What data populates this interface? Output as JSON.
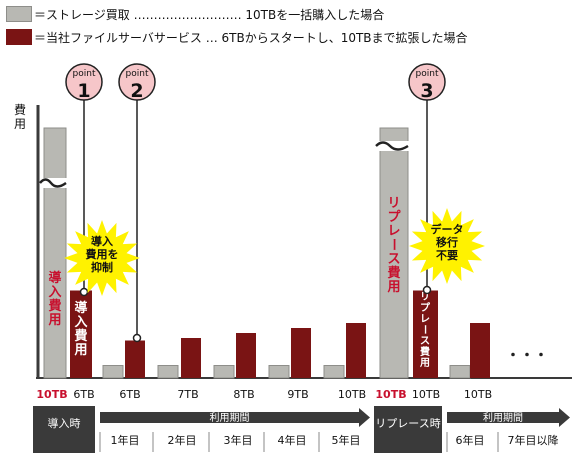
{
  "colors": {
    "purchase": "#b8b8b3",
    "purchase_stroke": "#8e8e8a",
    "service": "#7a1414",
    "accent_red": "#c8102e",
    "dark_block": "#3a3a3a",
    "point_fill": "#f6c6c9",
    "burst": "#fff200"
  },
  "legend": [
    {
      "color_key": "purchase",
      "label": "＝ストレージ買取 ……………………… 10TBを一括購入した場合"
    },
    {
      "color_key": "service",
      "label": "＝当社ファイルサーバサービス … 6TBからスタートし、10TBまで拡張した場合"
    }
  ],
  "chart_data": {
    "type": "bar",
    "ylabel": "費用",
    "periods": [
      "導入時",
      "1年目",
      "2年目",
      "3年目",
      "4年目",
      "5年目",
      "リプレース時",
      "6年目",
      "7年目以降"
    ],
    "series": [
      {
        "name": "ストレージ買取",
        "capacity": [
          "10TB",
          "",
          "",
          "",
          "",
          "",
          "10TB",
          "",
          ""
        ],
        "relative_cost": [
          1.0,
          0.05,
          0.05,
          0.05,
          0.05,
          0.05,
          1.0,
          0.05,
          null
        ]
      },
      {
        "name": "当社ファイルサーバサービス",
        "capacity": [
          "6TB",
          "6TB",
          "7TB",
          "8TB",
          "9TB",
          "10TB",
          "10TB",
          "10TB",
          null
        ],
        "relative_cost": [
          0.35,
          0.15,
          0.16,
          0.18,
          0.2,
          0.22,
          0.35,
          0.22,
          null
        ]
      }
    ],
    "bar_text": {
      "intro_purchase": "導入費用",
      "intro_service": "導入費用",
      "replace_purchase": "リプレース費用",
      "replace_service": "リプレース費用"
    },
    "points": [
      {
        "label": "point",
        "num": "1"
      },
      {
        "label": "point",
        "num": "2"
      },
      {
        "label": "point",
        "num": "3"
      }
    ],
    "callouts": [
      {
        "lines": [
          "導入",
          "費用を",
          "抑制"
        ]
      },
      {
        "lines": [
          "データ",
          "移行",
          "不要"
        ]
      }
    ],
    "axis_band": {
      "span_label": "利用期間",
      "span_label_2": "利用期間",
      "intro_label": "導入時",
      "replace_label": "リプレース時",
      "year_labels": [
        "1年目",
        "2年目",
        "3年目",
        "4年目",
        "5年目"
      ],
      "year_labels_2": [
        "6年目",
        "7年目以降"
      ]
    },
    "ellipsis": "・・・",
    "break_mark": "〜",
    "grid": false
  }
}
